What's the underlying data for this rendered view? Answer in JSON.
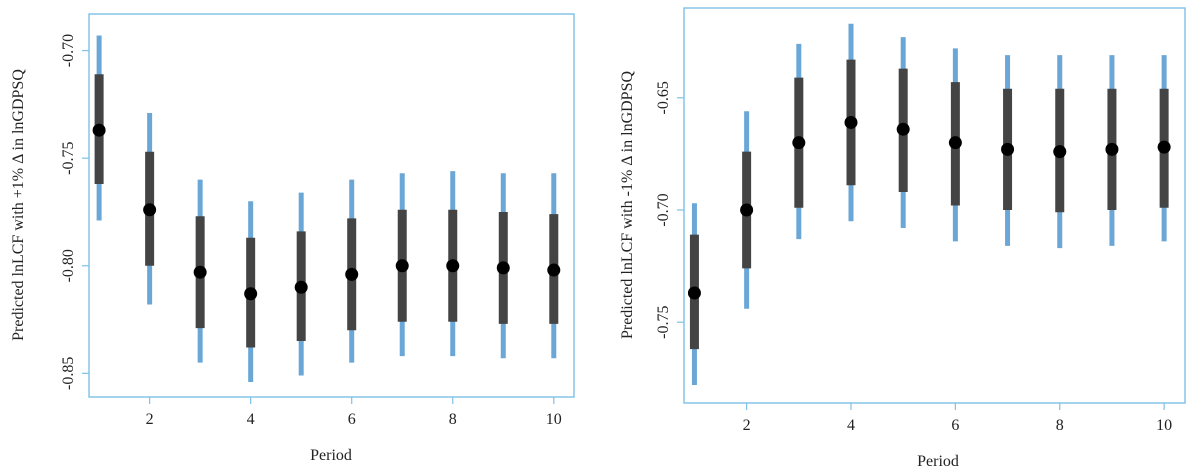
{
  "chart_data": [
    {
      "type": "scatter",
      "title": "",
      "xlabel": "Period",
      "ylabel": "Predicted lnLCF with +1% Δ in lnGDPSQ",
      "x": [
        1,
        2,
        3,
        4,
        5,
        6,
        7,
        8,
        9,
        10
      ],
      "xticks": [
        "2",
        "4",
        "6",
        "8",
        "10"
      ],
      "yticks": [
        "-0.70",
        "-0.75",
        "-0.80",
        "-0.85"
      ],
      "xlim": [
        0.8,
        10.4
      ],
      "ylim": [
        -0.861,
        -0.683
      ],
      "colors": {
        "point": "#000000",
        "inner_bar": "#444444",
        "outer_bar": "#6aa7d6",
        "frame": "#7ec0e6"
      },
      "series": [
        {
          "values": [
            -0.737,
            -0.774,
            -0.803,
            -0.813,
            -0.81,
            -0.804,
            -0.8,
            -0.8,
            -0.801,
            -0.802
          ],
          "inner_low": [
            -0.762,
            -0.8,
            -0.829,
            -0.838,
            -0.835,
            -0.83,
            -0.826,
            -0.826,
            -0.827,
            -0.827
          ],
          "inner_high": [
            -0.711,
            -0.747,
            -0.777,
            -0.787,
            -0.784,
            -0.778,
            -0.774,
            -0.774,
            -0.775,
            -0.776
          ],
          "outer_low": [
            -0.779,
            -0.818,
            -0.845,
            -0.854,
            -0.851,
            -0.845,
            -0.842,
            -0.842,
            -0.843,
            -0.843
          ],
          "outer_high": [
            -0.693,
            -0.729,
            -0.76,
            -0.77,
            -0.766,
            -0.76,
            -0.757,
            -0.756,
            -0.757,
            -0.757
          ]
        }
      ]
    },
    {
      "type": "scatter",
      "title": "",
      "xlabel": "Period",
      "ylabel": "Predicted lnLCF with -1% Δ in lnGDPSQ",
      "x": [
        1,
        2,
        3,
        4,
        5,
        6,
        7,
        8,
        9,
        10
      ],
      "xticks": [
        "2",
        "4",
        "6",
        "8",
        "10"
      ],
      "yticks": [
        "-0.65",
        "-0.70",
        "-0.75"
      ],
      "xlim": [
        0.8,
        10.4
      ],
      "ylim": [
        -0.786,
        -0.61
      ],
      "colors": {
        "point": "#000000",
        "inner_bar": "#444444",
        "outer_bar": "#6aa7d6",
        "frame": "#7ec0e6"
      },
      "series": [
        {
          "values": [
            -0.737,
            -0.7,
            -0.67,
            -0.661,
            -0.664,
            -0.67,
            -0.673,
            -0.674,
            -0.673,
            -0.672
          ],
          "inner_low": [
            -0.762,
            -0.726,
            -0.699,
            -0.689,
            -0.692,
            -0.698,
            -0.7,
            -0.701,
            -0.7,
            -0.699
          ],
          "inner_high": [
            -0.711,
            -0.674,
            -0.641,
            -0.633,
            -0.637,
            -0.643,
            -0.646,
            -0.646,
            -0.646,
            -0.646
          ],
          "outer_low": [
            -0.778,
            -0.744,
            -0.713,
            -0.705,
            -0.708,
            -0.714,
            -0.716,
            -0.717,
            -0.716,
            -0.714
          ],
          "outer_high": [
            -0.697,
            -0.656,
            -0.626,
            -0.617,
            -0.623,
            -0.628,
            -0.631,
            -0.631,
            -0.631,
            -0.631
          ]
        }
      ]
    }
  ]
}
